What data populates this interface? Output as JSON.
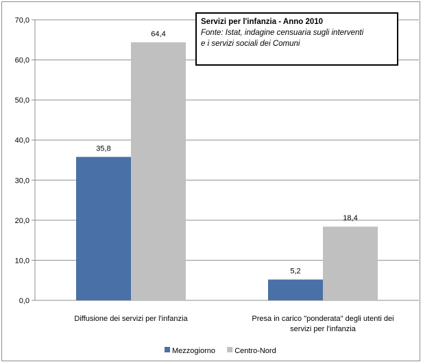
{
  "chart_data": {
    "type": "bar",
    "title": "Servizi per l'infanzia - Anno 2010",
    "subtitle": "Fonte: Istat, indagine censuaria sugli interventi\n      e i servizi sociali dei Comuni",
    "categories": [
      "Diffusione dei servizi per l'infanzia",
      "Presa in carico \"ponderata\"  degli utenti dei servizi per l'infanzia"
    ],
    "series": [
      {
        "name": "Mezzogiorno",
        "values": [
          35.8,
          5.2
        ],
        "color": "#4a70a8"
      },
      {
        "name": "Centro-Nord",
        "values": [
          64.4,
          18.4
        ],
        "color": "#c0c0c0"
      }
    ],
    "data_labels": [
      [
        "35,8",
        "5,2"
      ],
      [
        "64,4",
        "18,4"
      ]
    ],
    "y_ticks": [
      "0,0",
      "10,0",
      "20,0",
      "30,0",
      "40,0",
      "50,0",
      "60,0",
      "70,0"
    ],
    "ylim": [
      0,
      70
    ],
    "xlabel": "",
    "ylabel": "",
    "grid": true,
    "legend_position": "bottom"
  }
}
